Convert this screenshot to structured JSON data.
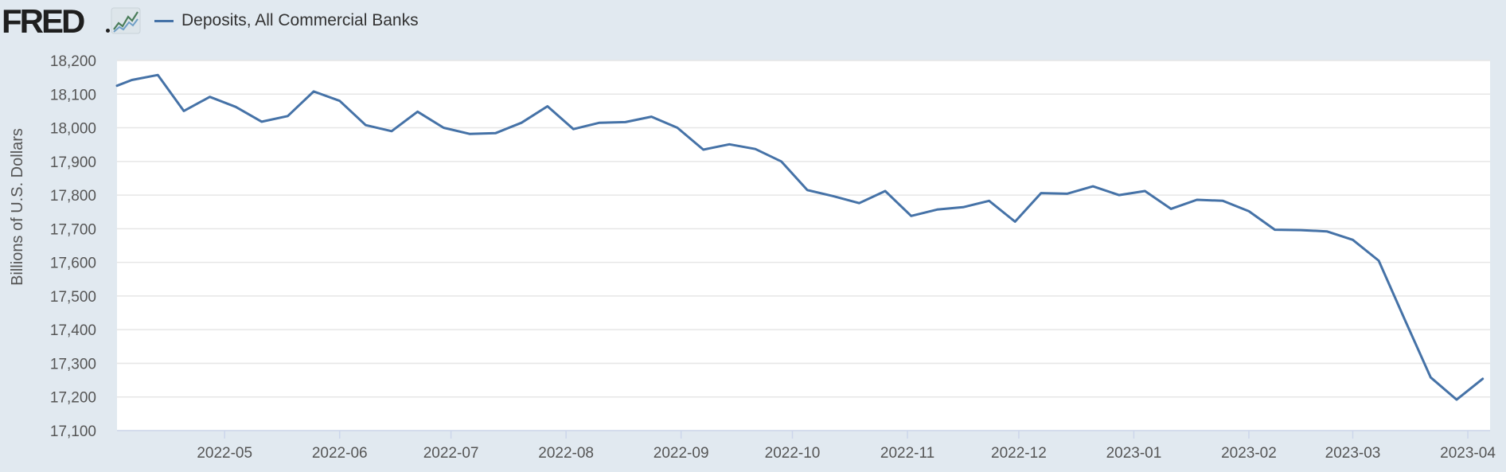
{
  "header": {
    "logo_text": "FRED",
    "logo_icon": "line-chart-icon",
    "legend_label": "Deposits, All Commercial Banks"
  },
  "colors": {
    "series": "#4572a7",
    "plot_background": "#ffffff",
    "page_background": "#e1e9f0",
    "grid": "#e6e6e6"
  },
  "chart_data": {
    "type": "line",
    "title": "",
    "xlabel": "",
    "ylabel": "Billions of U.S. Dollars",
    "ylim": [
      17100,
      18200
    ],
    "xlim": [
      "2022-04-02",
      "2023-04-07"
    ],
    "y_ticks": [
      17100,
      17200,
      17300,
      17400,
      17500,
      17600,
      17700,
      17800,
      17900,
      18000,
      18100,
      18200
    ],
    "y_tick_labels": [
      "17,100",
      "17,200",
      "17,300",
      "17,400",
      "17,500",
      "17,600",
      "17,700",
      "17,800",
      "17,900",
      "18,000",
      "18,100",
      "18,200"
    ],
    "x_ticks": [
      "2022-05-01",
      "2022-06-01",
      "2022-07-01",
      "2022-08-01",
      "2022-09-01",
      "2022-10-01",
      "2022-11-01",
      "2022-12-01",
      "2023-01-01",
      "2023-02-01",
      "2023-03-01",
      "2023-04-01"
    ],
    "x_tick_labels": [
      "2022-05",
      "2022-06",
      "2022-07",
      "2022-08",
      "2022-09",
      "2022-10",
      "2022-11",
      "2022-12",
      "2023-01",
      "2023-02",
      "2023-03",
      "2023-04"
    ],
    "grid": true,
    "legend": "top-left",
    "series": [
      {
        "name": "Deposits, All Commercial Banks",
        "x": [
          "2022-04-02",
          "2022-04-06",
          "2022-04-13",
          "2022-04-20",
          "2022-04-27",
          "2022-05-04",
          "2022-05-11",
          "2022-05-18",
          "2022-05-25",
          "2022-06-01",
          "2022-06-08",
          "2022-06-15",
          "2022-06-22",
          "2022-06-29",
          "2022-07-06",
          "2022-07-13",
          "2022-07-20",
          "2022-07-27",
          "2022-08-03",
          "2022-08-10",
          "2022-08-17",
          "2022-08-24",
          "2022-08-31",
          "2022-09-07",
          "2022-09-14",
          "2022-09-21",
          "2022-09-28",
          "2022-10-05",
          "2022-10-12",
          "2022-10-19",
          "2022-10-26",
          "2022-11-02",
          "2022-11-09",
          "2022-11-16",
          "2022-11-23",
          "2022-11-30",
          "2022-12-07",
          "2022-12-14",
          "2022-12-21",
          "2022-12-28",
          "2023-01-04",
          "2023-01-11",
          "2023-01-18",
          "2023-01-25",
          "2023-02-01",
          "2023-02-08",
          "2023-02-15",
          "2023-02-22",
          "2023-03-01",
          "2023-03-08",
          "2023-03-15",
          "2023-03-22",
          "2023-03-29",
          "2023-04-05"
        ],
        "values": [
          18125,
          18142,
          18157,
          18050,
          18092,
          18062,
          18018,
          18035,
          18108,
          18080,
          18008,
          17990,
          18048,
          18000,
          17982,
          17984,
          18015,
          18064,
          17996,
          18015,
          18017,
          18033,
          18000,
          17935,
          17951,
          17937,
          17900,
          17815,
          17797,
          17776,
          17812,
          17738,
          17757,
          17764,
          17783,
          17721,
          17806,
          17804,
          17826,
          17800,
          17812,
          17759,
          17786,
          17783,
          17752,
          17697,
          17696,
          17692,
          17667,
          17605,
          17430,
          17258,
          17192,
          17254
        ]
      }
    ]
  }
}
